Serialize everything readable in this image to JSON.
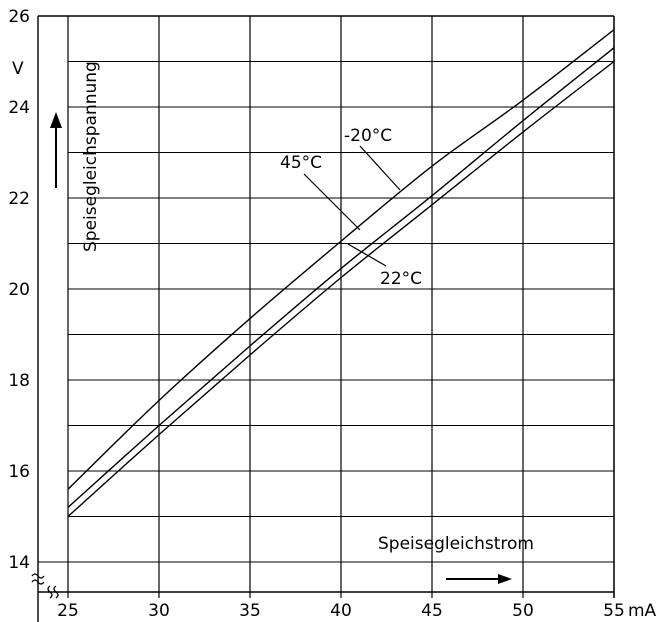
{
  "chart_data": {
    "type": "line",
    "xlabel": "Speisegleichstrom",
    "ylabel": "Speisegleichspannung",
    "x_unit": "mA",
    "y_unit": "V",
    "xlim": [
      25,
      55
    ],
    "ylim": [
      14,
      26
    ],
    "x_ticks": [
      25,
      30,
      35,
      40,
      45,
      50,
      55
    ],
    "y_ticks": [
      14,
      16,
      18,
      20,
      22,
      24,
      26
    ],
    "grid": true,
    "axis_break": "x and y axes broken near origin",
    "series": [
      {
        "name": "-20°C",
        "x": [
          25,
          30,
          35,
          40,
          45,
          50,
          55
        ],
        "y": [
          15.6,
          17.55,
          19.35,
          21.05,
          22.7,
          24.15,
          25.7
        ]
      },
      {
        "name": "45°C",
        "x": [
          25,
          30,
          35,
          40,
          45,
          50,
          55
        ],
        "y": [
          15.2,
          17.0,
          18.75,
          20.45,
          22.05,
          23.7,
          25.3
        ]
      },
      {
        "name": "22°C",
        "x": [
          25,
          30,
          35,
          40,
          45,
          50,
          55
        ],
        "y": [
          15.0,
          16.8,
          18.55,
          20.25,
          21.85,
          23.45,
          25.0
        ]
      }
    ]
  }
}
